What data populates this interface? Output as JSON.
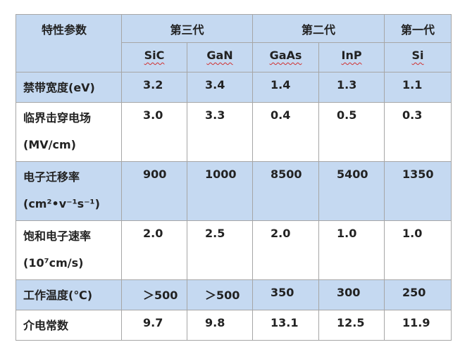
{
  "table": {
    "header": {
      "property": "特性参数",
      "groups": [
        "第三代",
        "第二代",
        "第一代"
      ],
      "materials": [
        "SiC",
        "GaN",
        "GaAs",
        "InP",
        "Si"
      ]
    },
    "rows": [
      {
        "label": [
          "禁带宽度(eV)"
        ],
        "values": [
          "3.2",
          "3.4",
          "1.4",
          "1.3",
          "1.1"
        ]
      },
      {
        "label": [
          "临界击穿电场",
          "(MV/cm)"
        ],
        "values": [
          "3.0",
          "3.3",
          "0.4",
          "0.5",
          "0.3"
        ]
      },
      {
        "label": [
          "电子迁移率",
          "(cm²•v⁻¹s⁻¹)"
        ],
        "values": [
          "900",
          "1000",
          "8500",
          "5400",
          "1350"
        ]
      },
      {
        "label": [
          "饱和电子速率",
          "(10⁷cm/s)"
        ],
        "values": [
          "2.0",
          "2.5",
          "2.0",
          "1.0",
          "1.0"
        ]
      },
      {
        "label": [
          "工作温度(℃)"
        ],
        "values": [
          "＞500",
          "＞500",
          "350",
          "300",
          "250"
        ]
      },
      {
        "label": [
          "介电常数"
        ],
        "values": [
          "9.7",
          "9.8",
          "13.1",
          "12.5",
          "11.9"
        ]
      }
    ]
  }
}
